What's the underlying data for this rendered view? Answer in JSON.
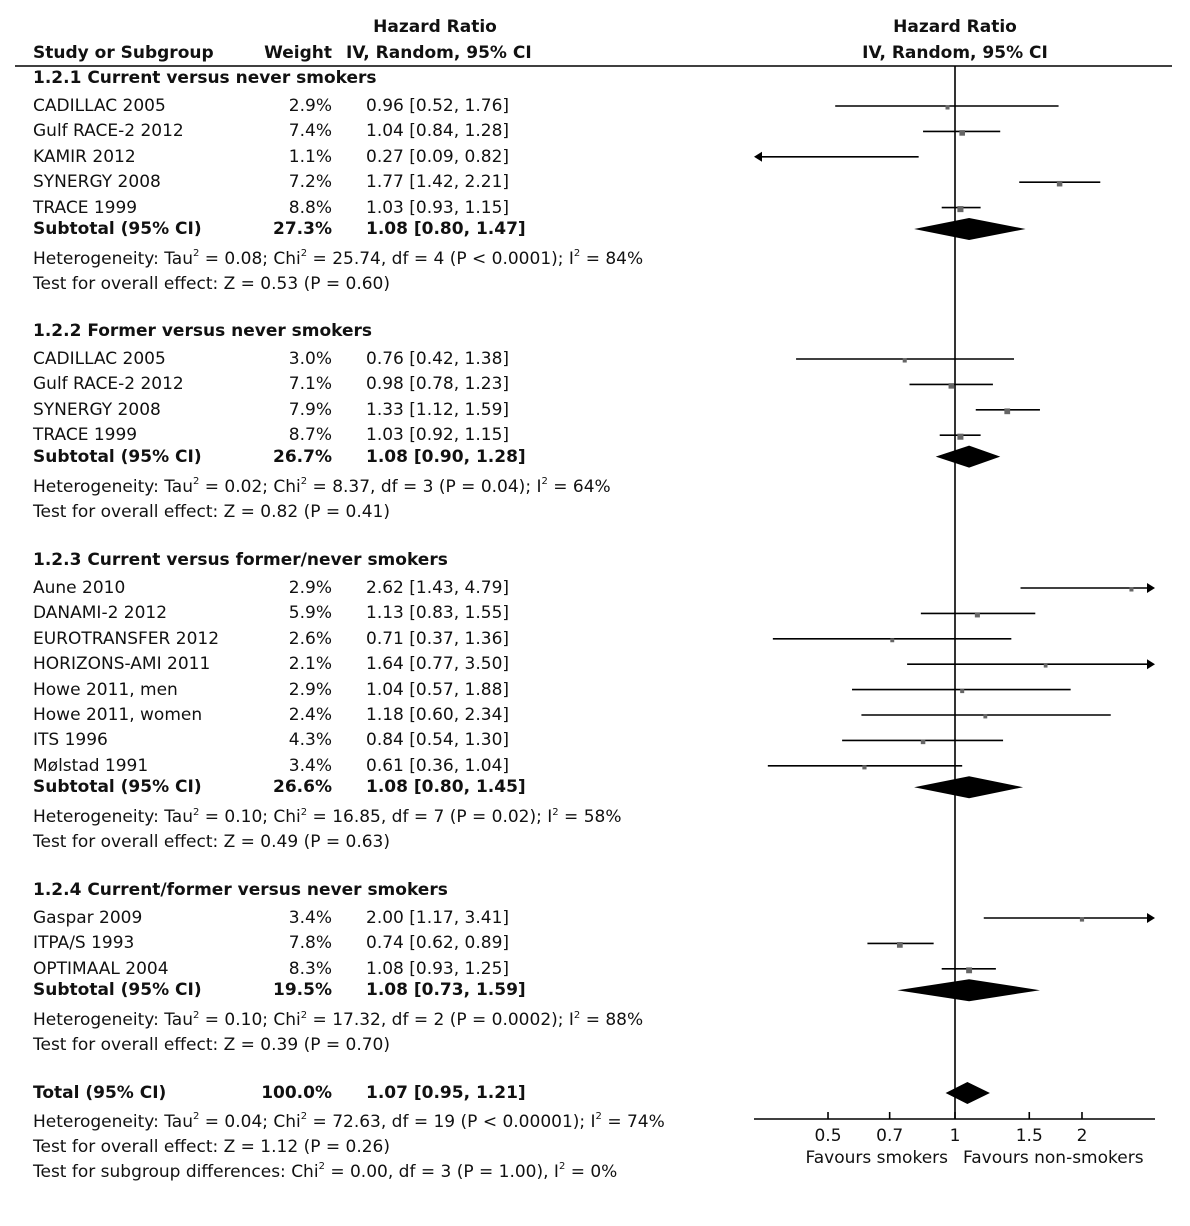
{
  "header": {
    "col_study": "Study or Subgroup",
    "col_weight": "Weight",
    "col_hr_title": "Hazard Ratio",
    "col_hr_method": "IV, Random, 95% CI",
    "plot_title": "Hazard Ratio",
    "plot_method": "IV, Random, 95% CI"
  },
  "chart_data": {
    "type": "forest",
    "scale": "log",
    "xlim": [
      0.33,
      3
    ],
    "reference_line": 1,
    "ticks": [
      "0.5",
      "0.7",
      "1",
      "1.5",
      "2"
    ],
    "tick_values": [
      0.5,
      0.7,
      1,
      1.5,
      2
    ],
    "xlabel_left": "Favours smokers",
    "xlabel_right": "Favours non-smokers",
    "subgroups": [
      {
        "title": "1.2.1 Current versus never smokers",
        "studies": [
          {
            "name": "CADILLAC 2005",
            "weight": "2.9%",
            "ci_text": "0.96 [0.52, 1.76]",
            "hr": 0.96,
            "lo": 0.52,
            "hi": 1.76
          },
          {
            "name": "Gulf RACE-2 2012",
            "weight": "7.4%",
            "ci_text": "1.04 [0.84, 1.28]",
            "hr": 1.04,
            "lo": 0.84,
            "hi": 1.28
          },
          {
            "name": "KAMIR 2012",
            "weight": "1.1%",
            "ci_text": "0.27 [0.09, 0.82]",
            "hr": 0.27,
            "lo": 0.09,
            "hi": 0.82
          },
          {
            "name": "SYNERGY 2008",
            "weight": "7.2%",
            "ci_text": "1.77 [1.42, 2.21]",
            "hr": 1.77,
            "lo": 1.42,
            "hi": 2.21
          },
          {
            "name": "TRACE 1999",
            "weight": "8.8%",
            "ci_text": "1.03 [0.93, 1.15]",
            "hr": 1.03,
            "lo": 0.93,
            "hi": 1.15
          }
        ],
        "subtotal": {
          "label": "Subtotal (95% CI)",
          "weight": "27.3%",
          "ci_text": "1.08 [0.80, 1.47]",
          "hr": 1.08,
          "lo": 0.8,
          "hi": 1.47
        },
        "heterogeneity": {
          "prefix": "Heterogeneity: Tau",
          "sup1": "2",
          "mid1": " = 0.08; Chi",
          "sup2": "2",
          "mid2": " = 25.74, df = 4 (P < 0.0001); I",
          "sup3": "2",
          "end": " = 84%"
        },
        "overall": "Test for overall effect: Z = 0.53 (P = 0.60)"
      },
      {
        "title": "1.2.2 Former versus never smokers",
        "studies": [
          {
            "name": "CADILLAC 2005",
            "weight": "3.0%",
            "ci_text": "0.76 [0.42, 1.38]",
            "hr": 0.76,
            "lo": 0.42,
            "hi": 1.38
          },
          {
            "name": "Gulf RACE-2 2012",
            "weight": "7.1%",
            "ci_text": "0.98 [0.78, 1.23]",
            "hr": 0.98,
            "lo": 0.78,
            "hi": 1.23
          },
          {
            "name": "SYNERGY 2008",
            "weight": "7.9%",
            "ci_text": "1.33 [1.12, 1.59]",
            "hr": 1.33,
            "lo": 1.12,
            "hi": 1.59
          },
          {
            "name": "TRACE 1999",
            "weight": "8.7%",
            "ci_text": "1.03 [0.92, 1.15]",
            "hr": 1.03,
            "lo": 0.92,
            "hi": 1.15
          }
        ],
        "subtotal": {
          "label": "Subtotal (95% CI)",
          "weight": "26.7%",
          "ci_text": "1.08 [0.90, 1.28]",
          "hr": 1.08,
          "lo": 0.9,
          "hi": 1.28
        },
        "heterogeneity": {
          "prefix": "Heterogeneity: Tau",
          "sup1": "2",
          "mid1": " = 0.02; Chi",
          "sup2": "2",
          "mid2": " = 8.37, df = 3 (P = 0.04); I",
          "sup3": "2",
          "end": " = 64%"
        },
        "overall": "Test for overall effect: Z = 0.82 (P = 0.41)"
      },
      {
        "title": "1.2.3 Current versus former/never smokers",
        "studies": [
          {
            "name": "Aune 2010",
            "weight": "2.9%",
            "ci_text": "2.62 [1.43, 4.79]",
            "hr": 2.62,
            "lo": 1.43,
            "hi": 4.79
          },
          {
            "name": "DANAMI-2 2012",
            "weight": "5.9%",
            "ci_text": "1.13 [0.83, 1.55]",
            "hr": 1.13,
            "lo": 0.83,
            "hi": 1.55
          },
          {
            "name": "EUROTRANSFER 2012",
            "weight": "2.6%",
            "ci_text": "0.71 [0.37, 1.36]",
            "hr": 0.71,
            "lo": 0.37,
            "hi": 1.36
          },
          {
            "name": "HORIZONS-AMI 2011",
            "weight": "2.1%",
            "ci_text": "1.64 [0.77, 3.50]",
            "hr": 1.64,
            "lo": 0.77,
            "hi": 3.5
          },
          {
            "name": "Howe 2011, men",
            "weight": "2.9%",
            "ci_text": "1.04 [0.57, 1.88]",
            "hr": 1.04,
            "lo": 0.57,
            "hi": 1.88
          },
          {
            "name": "Howe 2011, women",
            "weight": "2.4%",
            "ci_text": "1.18 [0.60, 2.34]",
            "hr": 1.18,
            "lo": 0.6,
            "hi": 2.34
          },
          {
            "name": "ITS 1996",
            "weight": "4.3%",
            "ci_text": "0.84 [0.54, 1.30]",
            "hr": 0.84,
            "lo": 0.54,
            "hi": 1.3
          },
          {
            "name": "Mølstad 1991",
            "weight": "3.4%",
            "ci_text": "0.61 [0.36, 1.04]",
            "hr": 0.61,
            "lo": 0.36,
            "hi": 1.04
          }
        ],
        "subtotal": {
          "label": "Subtotal (95% CI)",
          "weight": "26.6%",
          "ci_text": "1.08 [0.80, 1.45]",
          "hr": 1.08,
          "lo": 0.8,
          "hi": 1.45
        },
        "heterogeneity": {
          "prefix": "Heterogeneity: Tau",
          "sup1": "2",
          "mid1": " = 0.10; Chi",
          "sup2": "2",
          "mid2": " = 16.85, df = 7 (P = 0.02); I",
          "sup3": "2",
          "end": " = 58%"
        },
        "overall": "Test for overall effect: Z = 0.49 (P = 0.63)"
      },
      {
        "title": "1.2.4 Current/former versus never smokers",
        "studies": [
          {
            "name": "Gaspar 2009",
            "weight": "3.4%",
            "ci_text": "2.00 [1.17, 3.41]",
            "hr": 2.0,
            "lo": 1.17,
            "hi": 3.41
          },
          {
            "name": "ITPA/S 1993",
            "weight": "7.8%",
            "ci_text": "0.74 [0.62, 0.89]",
            "hr": 0.74,
            "lo": 0.62,
            "hi": 0.89
          },
          {
            "name": "OPTIMAAL 2004",
            "weight": "8.3%",
            "ci_text": "1.08 [0.93, 1.25]",
            "hr": 1.08,
            "lo": 0.93,
            "hi": 1.25
          }
        ],
        "subtotal": {
          "label": "Subtotal (95% CI)",
          "weight": "19.5%",
          "ci_text": "1.08 [0.73, 1.59]",
          "hr": 1.08,
          "lo": 0.73,
          "hi": 1.59
        },
        "heterogeneity": {
          "prefix": "Heterogeneity: Tau",
          "sup1": "2",
          "mid1": " = 0.10; Chi",
          "sup2": "2",
          "mid2": " = 17.32, df = 2 (P = 0.0002); I",
          "sup3": "2",
          "end": " = 88%"
        },
        "overall": "Test for overall effect: Z = 0.39 (P = 0.70)"
      }
    ],
    "total": {
      "label": "Total (95% CI)",
      "weight": "100.0%",
      "ci_text": "1.07 [0.95, 1.21]",
      "hr": 1.07,
      "lo": 0.95,
      "hi": 1.21,
      "heterogeneity": {
        "prefix": "Heterogeneity: Tau",
        "sup1": "2",
        "mid1": " = 0.04; Chi",
        "sup2": "2",
        "mid2": " = 72.63, df = 19 (P < 0.00001); I",
        "sup3": "2",
        "end": " = 74%"
      },
      "overall": "Test for overall effect: Z = 1.12 (P = 0.26)",
      "subgroup_diff": {
        "prefix": "Test for subgroup differences: Chi",
        "sup1": "2",
        "mid1": " = 0.00, df = 3 (P = 1.00), I",
        "sup2": "2",
        "end": " = 0%"
      }
    },
    "colors": {
      "square": "#666666",
      "line": "#000000",
      "diamond": "#000000"
    }
  }
}
